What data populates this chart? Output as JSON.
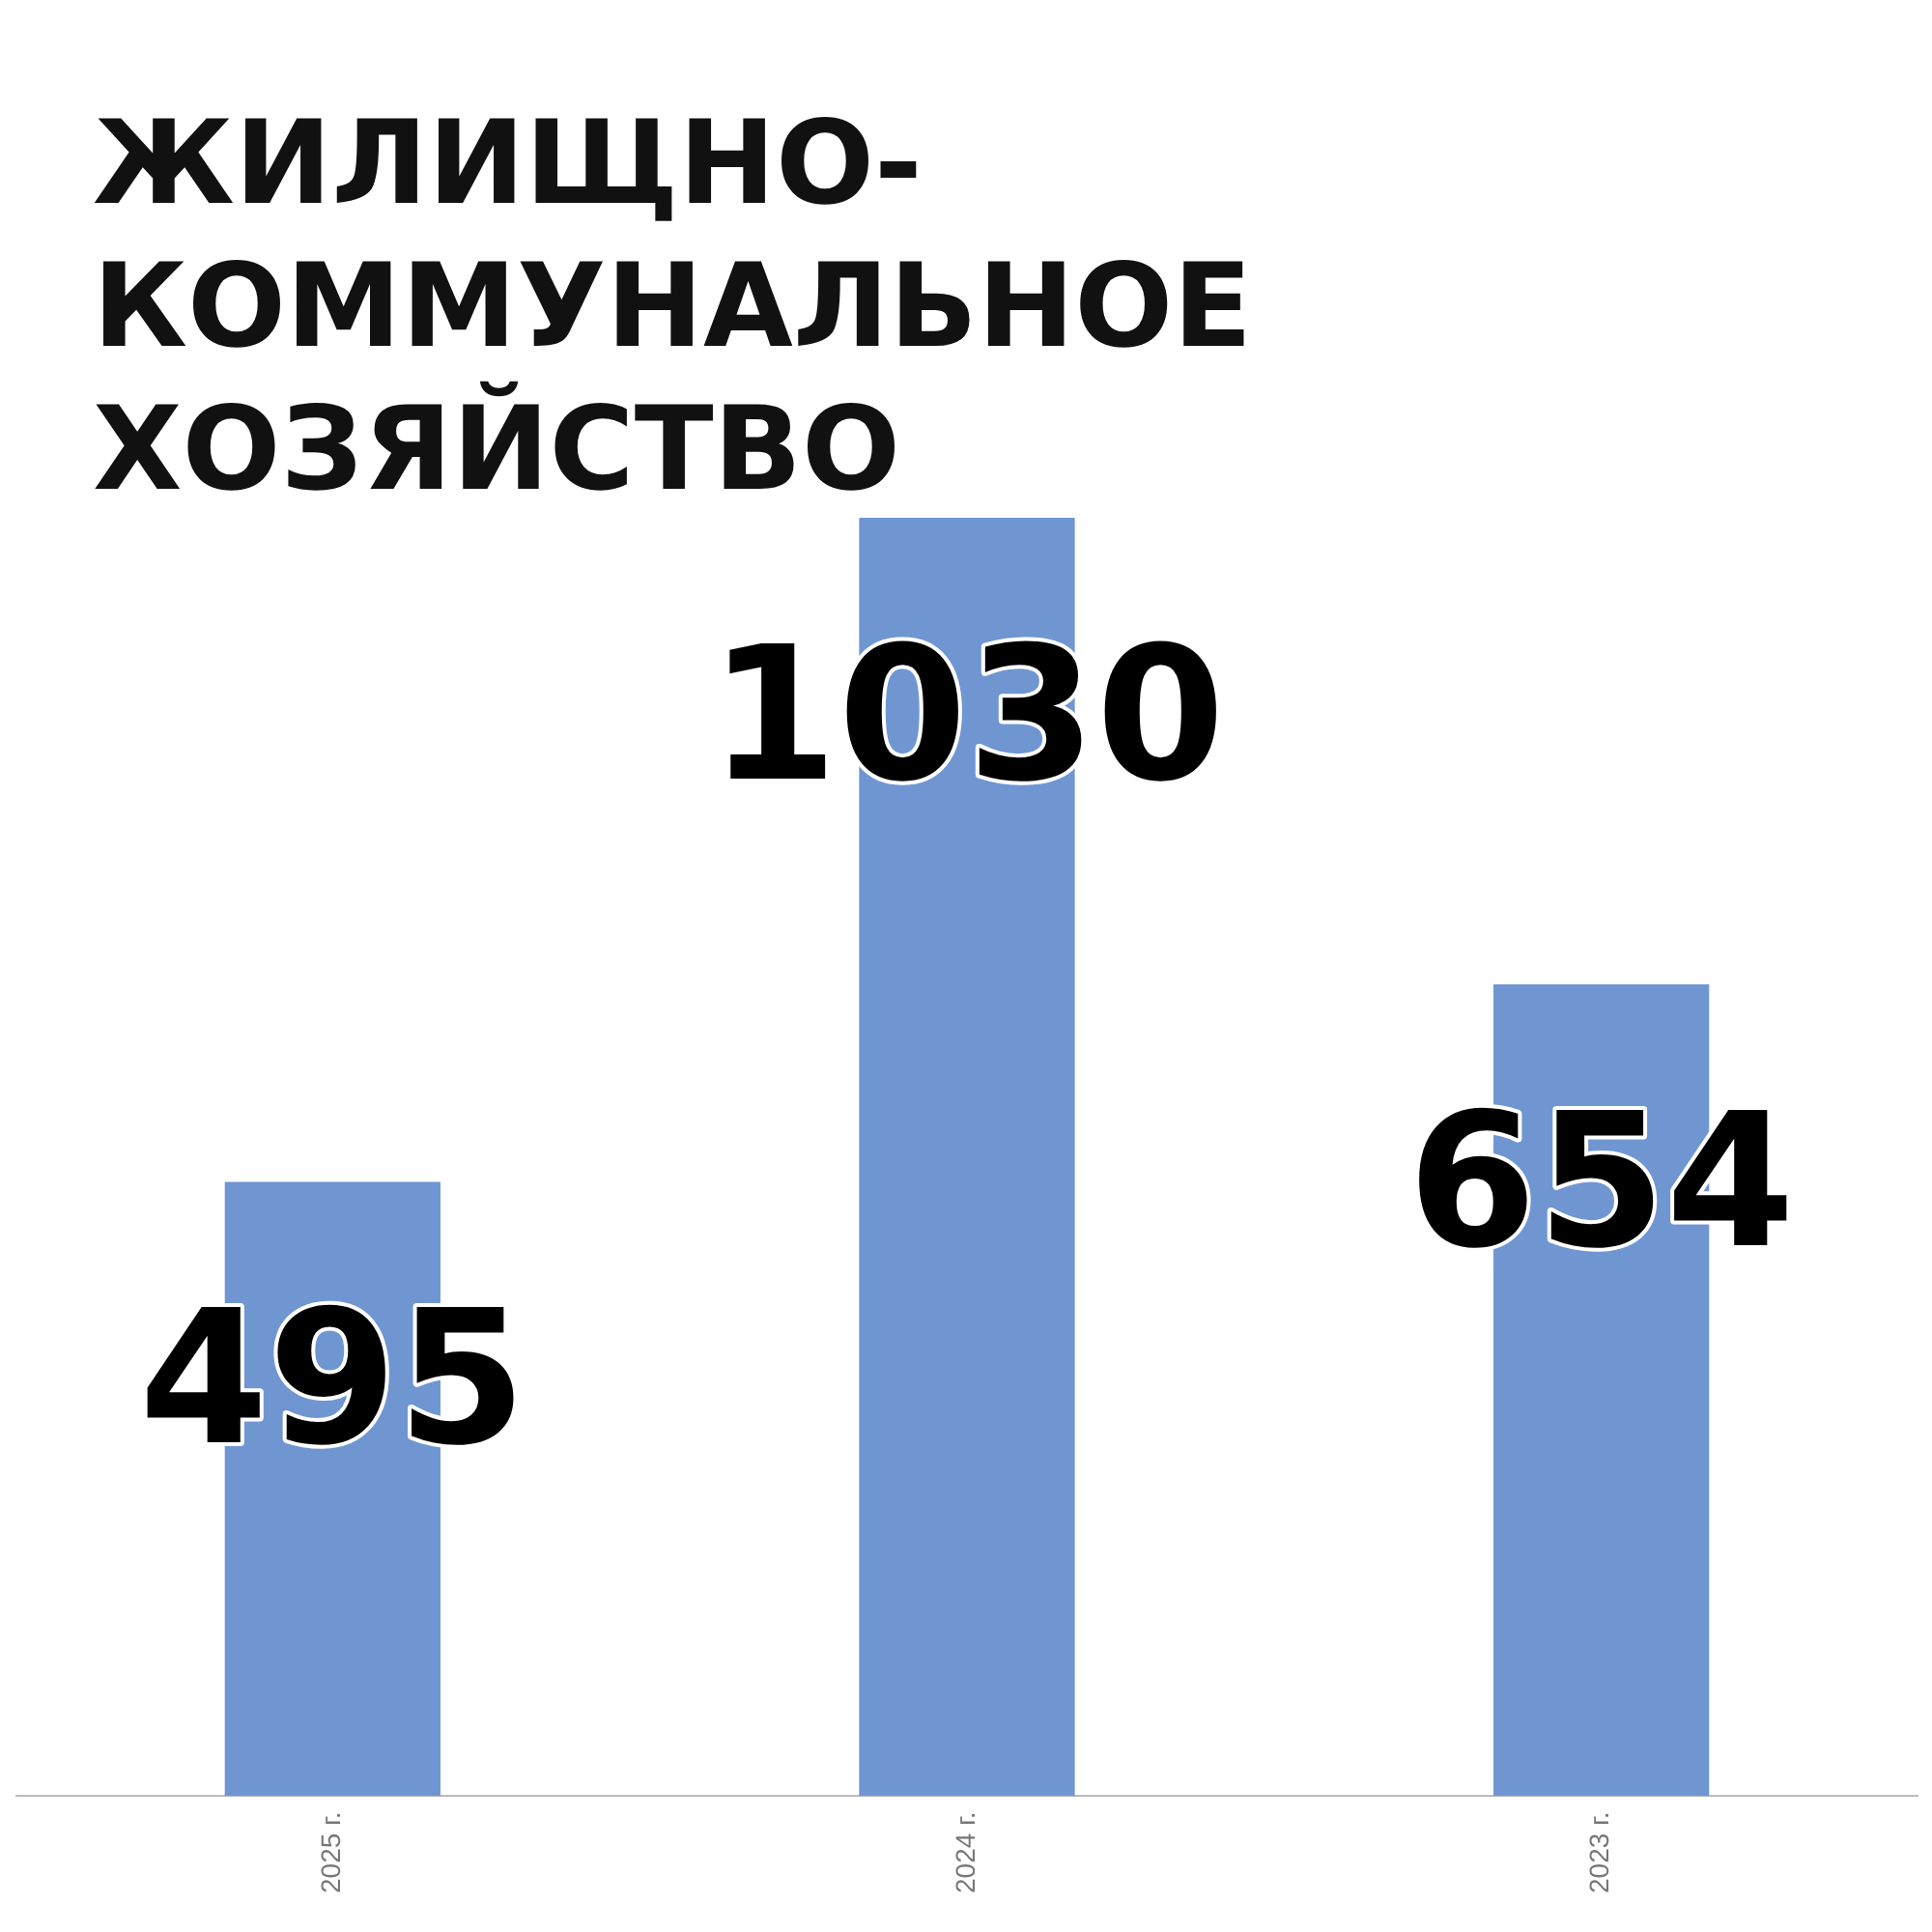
{
  "chart_data": {
    "type": "bar",
    "title": "ЖИЛИЩНО-КОММУНАЛЬНОЕ ХОЗЯЙСТВО",
    "categories": [
      "2025 г.",
      "2024 г.",
      "2023 г."
    ],
    "values": [
      495,
      1030,
      654
    ],
    "color": "#7096d2",
    "data_labels": true,
    "grid": false,
    "legend": false
  }
}
